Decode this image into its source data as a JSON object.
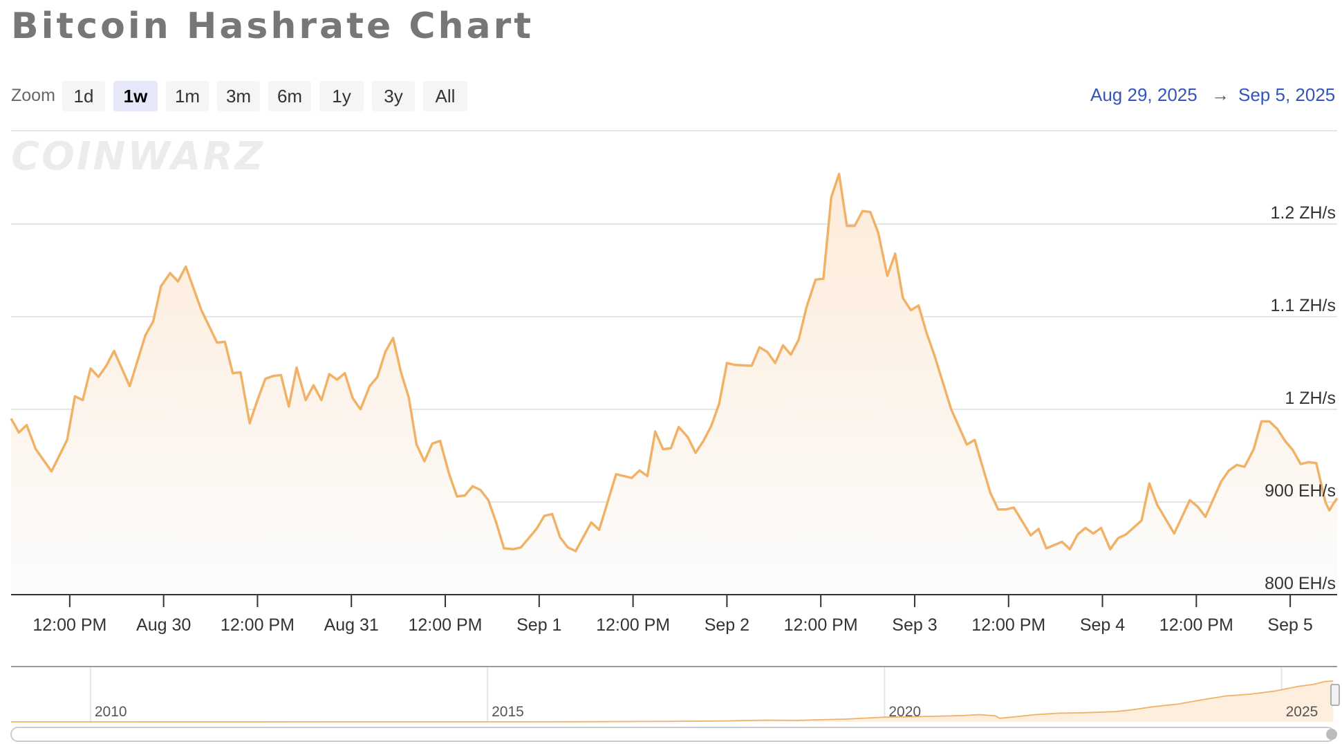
{
  "page": {
    "title": "Bitcoin Hashrate Chart"
  },
  "zoom": {
    "label": "Zoom",
    "options": [
      "1d",
      "1w",
      "1m",
      "3m",
      "6m",
      "1y",
      "3y",
      "All"
    ],
    "selected": "1w"
  },
  "range": {
    "from": "Aug 29, 2025",
    "arrow": "→",
    "to": "Sep 5, 2025"
  },
  "watermark": "COINWARZ",
  "colors": {
    "line": "#f0b266",
    "fill_top": "#fdebd8",
    "fill_bottom": "#fcfcfc",
    "grid": "#e6e6e6",
    "axis": "#333333",
    "range_text": "#3355bb"
  },
  "chart_data": {
    "type": "area",
    "title": "Bitcoin Hashrate Chart",
    "y_unit": "EH/s",
    "ylim": [
      800,
      1300
    ],
    "y_ticks": [
      {
        "value": 800,
        "label": "800 EH/s"
      },
      {
        "value": 900,
        "label": "900 EH/s"
      },
      {
        "value": 1000,
        "label": "1 ZH/s"
      },
      {
        "value": 1100,
        "label": "1.1 ZH/s"
      },
      {
        "value": 1200,
        "label": "1.2 ZH/s"
      }
    ],
    "x_domain": [
      "2025-08-29T04:30",
      "2025-09-05T06:00"
    ],
    "x_ticks": [
      {
        "t": "2025-08-29T12:00",
        "label": "12:00 PM"
      },
      {
        "t": "2025-08-30T00:00",
        "label": "Aug 30"
      },
      {
        "t": "2025-08-30T12:00",
        "label": "12:00 PM"
      },
      {
        "t": "2025-08-31T00:00",
        "label": "Aug 31"
      },
      {
        "t": "2025-08-31T12:00",
        "label": "12:00 PM"
      },
      {
        "t": "2025-09-01T00:00",
        "label": "Sep 1"
      },
      {
        "t": "2025-09-01T12:00",
        "label": "12:00 PM"
      },
      {
        "t": "2025-09-02T00:00",
        "label": "Sep 2"
      },
      {
        "t": "2025-09-02T12:00",
        "label": "12:00 PM"
      },
      {
        "t": "2025-09-03T00:00",
        "label": "Sep 3"
      },
      {
        "t": "2025-09-03T12:00",
        "label": "12:00 PM"
      },
      {
        "t": "2025-09-04T00:00",
        "label": "Sep 4"
      },
      {
        "t": "2025-09-04T12:00",
        "label": "12:00 PM"
      },
      {
        "t": "2025-09-05T00:00",
        "label": "Sep 5"
      }
    ],
    "grid": true,
    "series": [
      {
        "values": [
          [
            "2025-08-29T04:30",
            990
          ],
          [
            "2025-08-29T05:30",
            975
          ],
          [
            "2025-08-29T06:30",
            983
          ],
          [
            "2025-08-29T07:40",
            957
          ],
          [
            "2025-08-29T09:40",
            933
          ],
          [
            "2025-08-29T11:40",
            967
          ],
          [
            "2025-08-29T12:40",
            1014
          ],
          [
            "2025-08-29T13:40",
            1010
          ],
          [
            "2025-08-29T14:40",
            1044
          ],
          [
            "2025-08-29T15:40",
            1035
          ],
          [
            "2025-08-29T16:40",
            1047
          ],
          [
            "2025-08-29T17:40",
            1063
          ],
          [
            "2025-08-29T19:40",
            1025
          ],
          [
            "2025-08-29T21:40",
            1080
          ],
          [
            "2025-08-29T22:40",
            1095
          ],
          [
            "2025-08-29T23:40",
            1133
          ],
          [
            "2025-08-30T00:50",
            1147
          ],
          [
            "2025-08-30T01:50",
            1138
          ],
          [
            "2025-08-30T02:50",
            1154
          ],
          [
            "2025-08-30T04:50",
            1107
          ],
          [
            "2025-08-30T06:50",
            1072
          ],
          [
            "2025-08-30T07:50",
            1073
          ],
          [
            "2025-08-30T08:50",
            1039
          ],
          [
            "2025-08-30T09:50",
            1040
          ],
          [
            "2025-08-30T11:00",
            985
          ],
          [
            "2025-08-30T12:00",
            1010
          ],
          [
            "2025-08-30T13:00",
            1033
          ],
          [
            "2025-08-30T14:00",
            1036
          ],
          [
            "2025-08-30T15:00",
            1037
          ],
          [
            "2025-08-30T16:00",
            1003
          ],
          [
            "2025-08-30T17:00",
            1045
          ],
          [
            "2025-08-30T18:10",
            1010
          ],
          [
            "2025-08-30T19:10",
            1026
          ],
          [
            "2025-08-30T20:10",
            1010
          ],
          [
            "2025-08-30T21:10",
            1038
          ],
          [
            "2025-08-30T22:10",
            1032
          ],
          [
            "2025-08-30T23:10",
            1039
          ],
          [
            "2025-08-31T00:10",
            1012
          ],
          [
            "2025-08-31T01:10",
            1000
          ],
          [
            "2025-08-31T02:20",
            1025
          ],
          [
            "2025-08-31T03:20",
            1035
          ],
          [
            "2025-08-31T04:20",
            1062
          ],
          [
            "2025-08-31T05:20",
            1077
          ],
          [
            "2025-08-31T06:20",
            1040
          ],
          [
            "2025-08-31T07:20",
            1013
          ],
          [
            "2025-08-31T08:20",
            962
          ],
          [
            "2025-08-31T09:20",
            944
          ],
          [
            "2025-08-31T10:20",
            963
          ],
          [
            "2025-08-31T11:20",
            966
          ],
          [
            "2025-08-31T12:30",
            930
          ],
          [
            "2025-08-31T13:30",
            906
          ],
          [
            "2025-08-31T14:30",
            907
          ],
          [
            "2025-08-31T15:30",
            917
          ],
          [
            "2025-08-31T16:30",
            913
          ],
          [
            "2025-08-31T17:30",
            902
          ],
          [
            "2025-08-31T18:30",
            878
          ],
          [
            "2025-08-31T19:30",
            850
          ],
          [
            "2025-08-31T20:40",
            849
          ],
          [
            "2025-08-31T21:40",
            851
          ],
          [
            "2025-08-31T23:40",
            871
          ],
          [
            "2025-09-01T00:40",
            885
          ],
          [
            "2025-09-01T01:40",
            887
          ],
          [
            "2025-09-01T02:40",
            862
          ],
          [
            "2025-09-01T03:40",
            851
          ],
          [
            "2025-09-01T04:40",
            847
          ],
          [
            "2025-09-01T06:40",
            878
          ],
          [
            "2025-09-01T07:40",
            870
          ],
          [
            "2025-09-01T09:50",
            930
          ],
          [
            "2025-09-01T11:50",
            926
          ],
          [
            "2025-09-01T12:50",
            934
          ],
          [
            "2025-09-01T13:50",
            928
          ],
          [
            "2025-09-01T14:50",
            976
          ],
          [
            "2025-09-01T15:50",
            957
          ],
          [
            "2025-09-01T16:50",
            958
          ],
          [
            "2025-09-01T17:50",
            981
          ],
          [
            "2025-09-01T19:00",
            970
          ],
          [
            "2025-09-01T20:00",
            953
          ],
          [
            "2025-09-01T21:00",
            966
          ],
          [
            "2025-09-01T22:00",
            982
          ],
          [
            "2025-09-01T23:00",
            1006
          ],
          [
            "2025-09-02T00:00",
            1050
          ],
          [
            "2025-09-02T01:00",
            1048
          ],
          [
            "2025-09-02T03:10",
            1047
          ],
          [
            "2025-09-02T04:10",
            1067
          ],
          [
            "2025-09-02T05:10",
            1062
          ],
          [
            "2025-09-02T06:10",
            1050
          ],
          [
            "2025-09-02T07:10",
            1069
          ],
          [
            "2025-09-02T08:10",
            1059
          ],
          [
            "2025-09-02T09:10",
            1075
          ],
          [
            "2025-09-02T10:10",
            1110
          ],
          [
            "2025-09-02T11:20",
            1140
          ],
          [
            "2025-09-02T12:20",
            1141
          ],
          [
            "2025-09-02T13:20",
            1229
          ],
          [
            "2025-09-02T14:20",
            1254
          ],
          [
            "2025-09-02T15:20",
            1198
          ],
          [
            "2025-09-02T16:20",
            1198
          ],
          [
            "2025-09-02T17:20",
            1214
          ],
          [
            "2025-09-02T18:20",
            1213
          ],
          [
            "2025-09-02T19:20",
            1191
          ],
          [
            "2025-09-02T20:30",
            1144
          ],
          [
            "2025-09-02T21:30",
            1168
          ],
          [
            "2025-09-02T22:30",
            1120
          ],
          [
            "2025-09-02T23:30",
            1107
          ],
          [
            "2025-09-03T00:30",
            1112
          ],
          [
            "2025-09-03T01:30",
            1083
          ],
          [
            "2025-09-03T02:30",
            1059
          ],
          [
            "2025-09-03T04:40",
            1000
          ],
          [
            "2025-09-03T06:40",
            962
          ],
          [
            "2025-09-03T07:40",
            967
          ],
          [
            "2025-09-03T09:40",
            910
          ],
          [
            "2025-09-03T10:40",
            892
          ],
          [
            "2025-09-03T11:40",
            892
          ],
          [
            "2025-09-03T12:40",
            894
          ],
          [
            "2025-09-03T14:50",
            864
          ],
          [
            "2025-09-03T15:50",
            871
          ],
          [
            "2025-09-03T16:50",
            850
          ],
          [
            "2025-09-03T18:50",
            857
          ],
          [
            "2025-09-03T19:50",
            849
          ],
          [
            "2025-09-03T20:50",
            865
          ],
          [
            "2025-09-03T21:50",
            872
          ],
          [
            "2025-09-03T22:50",
            866
          ],
          [
            "2025-09-03T23:50",
            872
          ],
          [
            "2025-09-04T01:00",
            849
          ],
          [
            "2025-09-04T02:00",
            861
          ],
          [
            "2025-09-04T03:00",
            865
          ],
          [
            "2025-09-04T05:00",
            880
          ],
          [
            "2025-09-04T06:00",
            920
          ],
          [
            "2025-09-04T07:00",
            897
          ],
          [
            "2025-09-04T09:10",
            866
          ],
          [
            "2025-09-04T11:10",
            902
          ],
          [
            "2025-09-04T12:10",
            895
          ],
          [
            "2025-09-04T13:10",
            884
          ],
          [
            "2025-09-04T15:10",
            922
          ],
          [
            "2025-09-04T16:10",
            934
          ],
          [
            "2025-09-04T17:10",
            940
          ],
          [
            "2025-09-04T18:10",
            938
          ],
          [
            "2025-09-04T19:20",
            957
          ],
          [
            "2025-09-04T20:20",
            987
          ],
          [
            "2025-09-04T21:20",
            987
          ],
          [
            "2025-09-04T22:20",
            979
          ],
          [
            "2025-09-04T23:20",
            966
          ],
          [
            "2025-09-05T00:20",
            956
          ],
          [
            "2025-09-05T01:20",
            941
          ],
          [
            "2025-09-05T02:20",
            943
          ],
          [
            "2025-09-05T03:20",
            942
          ],
          [
            "2025-09-05T04:30",
            900
          ],
          [
            "2025-09-05T05:00",
            891
          ],
          [
            "2025-09-05T05:30",
            898
          ],
          [
            "2025-09-05T06:00",
            904
          ]
        ]
      }
    ],
    "navigator": {
      "labels": [
        "2010",
        "2015",
        "2020",
        "2025"
      ],
      "x_domain": [
        2009.0,
        2025.7
      ],
      "ylim": [
        0,
        1300
      ],
      "values": [
        [
          2009.0,
          0
        ],
        [
          2013.0,
          1
        ],
        [
          2014.0,
          2
        ],
        [
          2015.0,
          2
        ],
        [
          2016.0,
          4
        ],
        [
          2017.0,
          10
        ],
        [
          2017.5,
          14
        ],
        [
          2018.0,
          22
        ],
        [
          2018.5,
          40
        ],
        [
          2018.9,
          36
        ],
        [
          2019.0,
          40
        ],
        [
          2019.5,
          65
        ],
        [
          2020.0,
          110
        ],
        [
          2020.3,
          120
        ],
        [
          2020.6,
          130
        ],
        [
          2021.0,
          150
        ],
        [
          2021.2,
          170
        ],
        [
          2021.4,
          140
        ],
        [
          2021.45,
          85
        ],
        [
          2021.6,
          110
        ],
        [
          2021.9,
          170
        ],
        [
          2022.2,
          205
        ],
        [
          2022.5,
          215
        ],
        [
          2022.9,
          240
        ],
        [
          2023.1,
          280
        ],
        [
          2023.4,
          360
        ],
        [
          2023.7,
          420
        ],
        [
          2024.0,
          520
        ],
        [
          2024.3,
          610
        ],
        [
          2024.6,
          650
        ],
        [
          2024.9,
          720
        ],
        [
          2025.2,
          830
        ],
        [
          2025.4,
          880
        ],
        [
          2025.55,
          950
        ],
        [
          2025.65,
          960
        ]
      ]
    }
  }
}
